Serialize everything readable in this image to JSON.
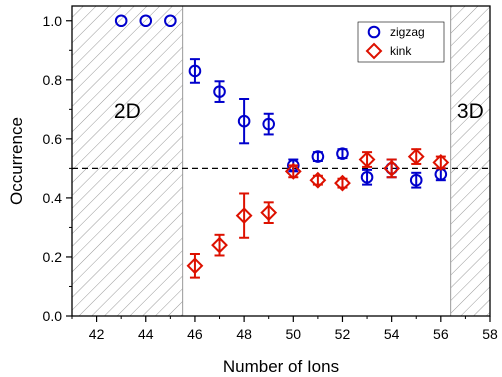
{
  "chart_data": {
    "type": "scatter",
    "title": "",
    "xlabel": "Number of Ions",
    "ylabel": "Occurrence",
    "xlim": [
      41,
      58
    ],
    "ylim": [
      0.0,
      1.05
    ],
    "x_ticks": [
      42,
      44,
      46,
      48,
      50,
      52,
      54,
      56,
      58
    ],
    "y_ticks": [
      0.0,
      0.2,
      0.4,
      0.6,
      0.8,
      1.0
    ],
    "y_tick_labels": [
      "0.0",
      "0.2",
      "0.4",
      "0.6",
      "0.8",
      "1.0"
    ],
    "grid": false,
    "reference_line": {
      "y": 0.5,
      "style": "dashed",
      "color": "#000000"
    },
    "regions": [
      {
        "label": "2D",
        "x_start": 41,
        "x_end": 45.5,
        "pattern": "hatched"
      },
      {
        "label": "3D",
        "x_start": 56.4,
        "x_end": 58,
        "pattern": "hatched"
      }
    ],
    "legend": {
      "position": "top-right"
    },
    "series": [
      {
        "name": "zigzag",
        "marker": "circle",
        "color": "#0000cc",
        "points": [
          {
            "x": 43,
            "y": 1.0,
            "err": 0
          },
          {
            "x": 44,
            "y": 1.0,
            "err": 0
          },
          {
            "x": 45,
            "y": 1.0,
            "err": 0
          },
          {
            "x": 46,
            "y": 0.83,
            "err": 0.04
          },
          {
            "x": 47,
            "y": 0.76,
            "err": 0.035
          },
          {
            "x": 48,
            "y": 0.66,
            "err": 0.075
          },
          {
            "x": 49,
            "y": 0.65,
            "err": 0.035
          },
          {
            "x": 50,
            "y": 0.51,
            "err": 0.02
          },
          {
            "x": 51,
            "y": 0.54,
            "err": 0.015
          },
          {
            "x": 52,
            "y": 0.55,
            "err": 0.015
          },
          {
            "x": 53,
            "y": 0.47,
            "err": 0.025
          },
          {
            "x": 54,
            "y": 0.5,
            "err": 0.03
          },
          {
            "x": 55,
            "y": 0.46,
            "err": 0.025
          },
          {
            "x": 56,
            "y": 0.48,
            "err": 0.02
          }
        ]
      },
      {
        "name": "kink",
        "marker": "diamond",
        "color": "#dd1100",
        "points": [
          {
            "x": 46,
            "y": 0.17,
            "err": 0.04
          },
          {
            "x": 47,
            "y": 0.24,
            "err": 0.035
          },
          {
            "x": 48,
            "y": 0.34,
            "err": 0.075
          },
          {
            "x": 49,
            "y": 0.35,
            "err": 0.035
          },
          {
            "x": 50,
            "y": 0.49,
            "err": 0.02
          },
          {
            "x": 51,
            "y": 0.46,
            "err": 0.015
          },
          {
            "x": 52,
            "y": 0.45,
            "err": 0.015
          },
          {
            "x": 53,
            "y": 0.53,
            "err": 0.025
          },
          {
            "x": 54,
            "y": 0.5,
            "err": 0.03
          },
          {
            "x": 55,
            "y": 0.54,
            "err": 0.025
          },
          {
            "x": 56,
            "y": 0.52,
            "err": 0.02
          }
        ]
      }
    ]
  }
}
